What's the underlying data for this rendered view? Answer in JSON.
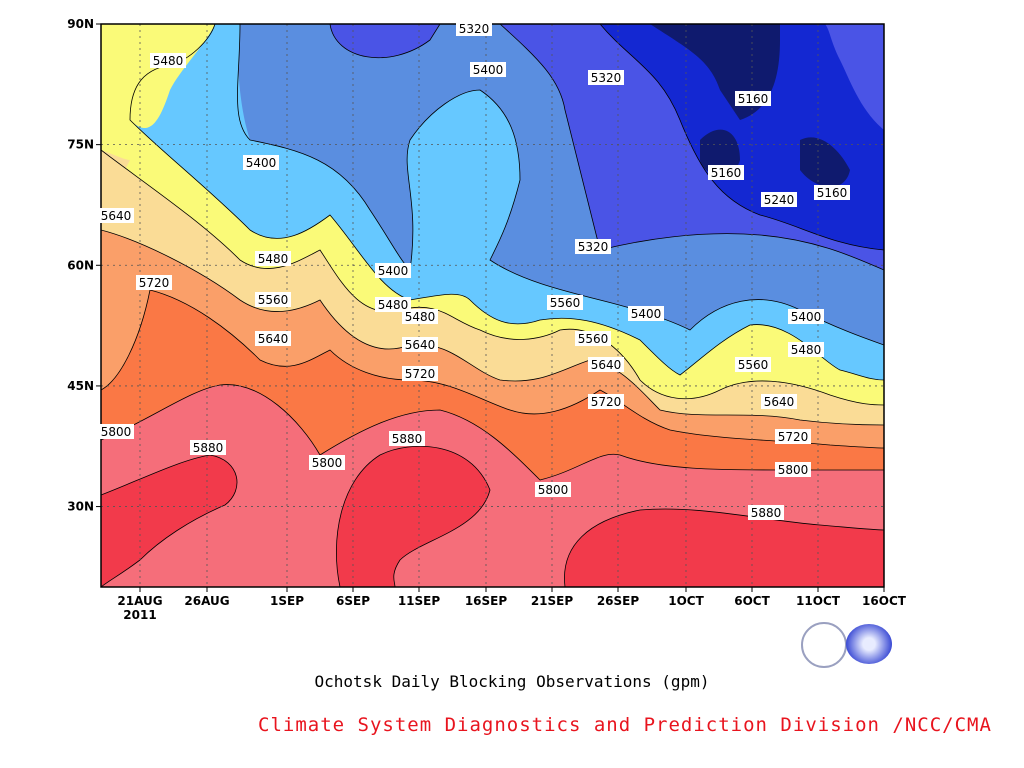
{
  "chart_data": {
    "type": "contour",
    "title": "Ochotsk Daily Blocking Observations (gpm)",
    "credit": "Climate System Diagnostics and Prediction Division /NCC/CMA",
    "credit_color": "#e8141e",
    "x_tick_labels": [
      "21AUG",
      "26AUG",
      "1SEP",
      "6SEP",
      "11SEP",
      "16SEP",
      "21SEP",
      "26SEP",
      "1OCT",
      "6OCT",
      "11OCT",
      "16OCT"
    ],
    "x_year_label": "2011",
    "y_tick_labels": [
      "30N",
      "45N",
      "60N",
      "75N",
      "90N"
    ],
    "ylim_deg": [
      20,
      90
    ],
    "grid": true,
    "contour_levels": [
      5160,
      5240,
      5320,
      5400,
      5480,
      5560,
      5640,
      5720,
      5800,
      5880
    ],
    "fill_colors": {
      "<5160": "#0f1a6e",
      "5160-5240": "#1428d2",
      "5240-5320": "#4a54e6",
      "5320-5400": "#5a8ee0",
      "5400-5480": "#66c8ff",
      "5480-5560": "#fafa78",
      "5560-5640": "#fadc96",
      "5640-5720": "#fa9f69",
      "5720-5800": "#fa7845",
      "5800-5880": "#f56e7a",
      ">5880": "#f23a4b"
    },
    "contour_labels": [
      "5320",
      "5480",
      "5400",
      "5320",
      "5160",
      "5400",
      "5160",
      "5240",
      "5160",
      "5640",
      "5480",
      "5400",
      "5320",
      "5720",
      "5560",
      "5480",
      "5560",
      "5480",
      "5400",
      "5400",
      "5640",
      "5640",
      "5560",
      "5480",
      "5720",
      "5640",
      "5560",
      "5720",
      "5640",
      "5800",
      "5880",
      "5800",
      "5880",
      "5800",
      "5720",
      "5800",
      "5880"
    ]
  }
}
